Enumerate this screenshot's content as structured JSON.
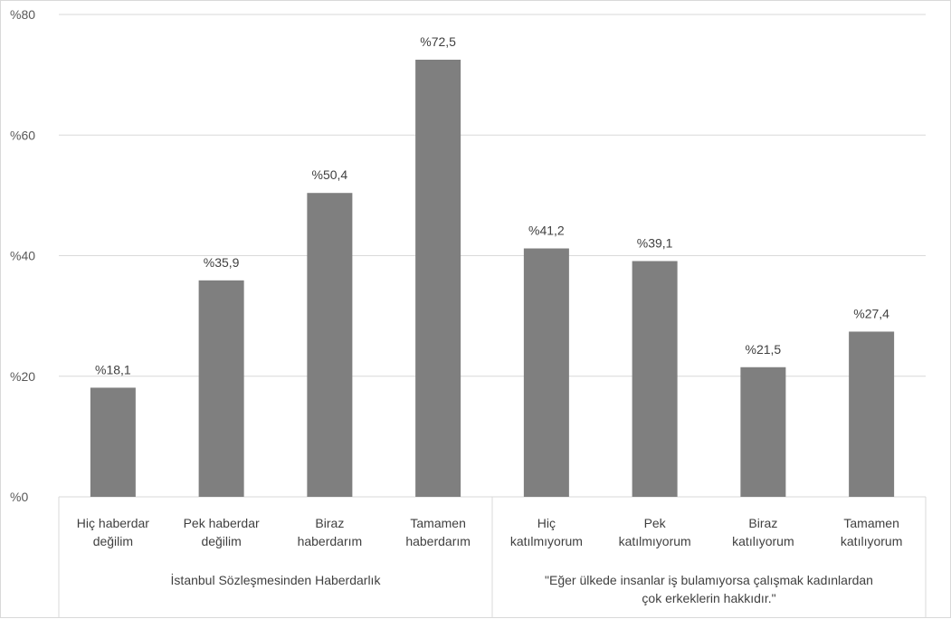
{
  "chart_data": {
    "type": "bar",
    "ylim": [
      0,
      80
    ],
    "yticks": [
      "%0",
      "%20",
      "%40",
      "%60",
      "%80"
    ],
    "ytick_values": [
      0,
      20,
      40,
      60,
      80
    ],
    "grid": true,
    "bar_color": "#7f7f7f",
    "categories": [
      [
        "Hiç haberdar",
        "değilim"
      ],
      [
        "Pek haberdar",
        "değilim"
      ],
      [
        "Biraz",
        "haberdarım"
      ],
      [
        "Tamamen",
        "haberdarım"
      ],
      [
        "Hiç",
        "katılmıyorum"
      ],
      [
        "Pek",
        "katılmıyorum"
      ],
      [
        "Biraz",
        "katılıyorum"
      ],
      [
        "Tamamen",
        "katılıyorum"
      ]
    ],
    "values": [
      18.1,
      35.9,
      50.4,
      72.5,
      41.2,
      39.1,
      21.5,
      27.4
    ],
    "data_labels": [
      "%18,1",
      "%35,9",
      "%50,4",
      "%72,5",
      "%41,2",
      "%39,1",
      "%21,5",
      "%27,4"
    ],
    "groups": [
      {
        "label": [
          "İstanbul Sözleşmesinden Haberdarlık"
        ],
        "categories": 4
      },
      {
        "label": [
          "\"Eğer ülkede insanlar iş bulamıyorsa çalışmak kadınlardan",
          "çok erkeklerin hakkıdır.\""
        ],
        "categories": 4
      }
    ]
  }
}
